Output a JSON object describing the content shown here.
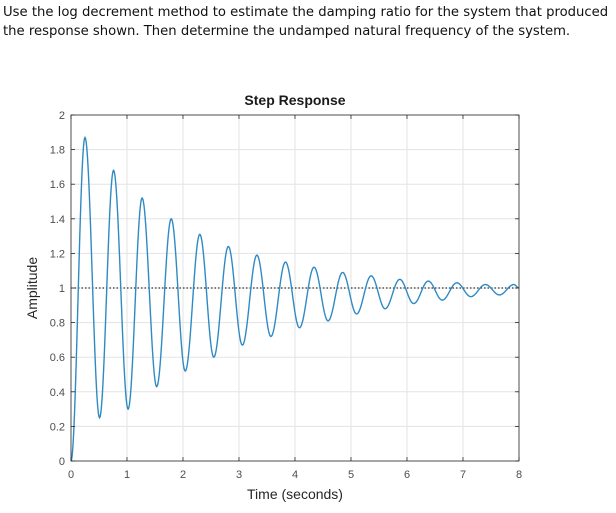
{
  "question": {
    "text": "Use the log decrement method to estimate the damping ratio for the system that produced the response shown.  Then determine the undamped natural frequency of the system."
  },
  "chart_data": {
    "type": "line",
    "title": "Step Response",
    "xlabel": "Time (seconds)",
    "ylabel": "Amplitude",
    "xlim": [
      0,
      8
    ],
    "ylim": [
      0,
      2
    ],
    "xticks": [
      0,
      1,
      2,
      3,
      4,
      5,
      6,
      7,
      8
    ],
    "yticks": [
      0,
      0.2,
      0.4,
      0.6,
      0.8,
      1,
      1.2,
      1.4,
      1.6,
      1.8,
      2
    ],
    "xtick_labels": [
      "0",
      "1",
      "2",
      "3",
      "4",
      "5",
      "6",
      "7",
      "8"
    ],
    "ytick_labels": [
      "0",
      "0.2",
      "0.4",
      "0.6",
      "0.8",
      "1",
      "1.2",
      "1.4",
      "1.6",
      "1.8",
      "2"
    ],
    "grid": true,
    "reference_line": {
      "y": 1,
      "style": "dotted",
      "color": "#000000"
    },
    "line_color": "#2f8ac4",
    "series": [
      {
        "x": [
          0,
          0.25,
          0.51,
          0.76,
          1.02,
          1.27,
          1.53,
          1.79,
          2.04,
          2.3,
          2.55,
          2.81,
          3.06,
          3.32,
          3.57,
          3.83,
          4.08,
          4.34,
          4.59,
          4.85,
          5.1,
          5.36,
          5.61,
          5.87,
          6.12,
          6.38,
          6.63,
          6.89,
          7.14,
          7.4,
          7.65,
          7.91,
          8.0
        ],
        "y": [
          0,
          1.87,
          0.25,
          1.68,
          0.3,
          1.52,
          0.43,
          1.4,
          0.52,
          1.31,
          0.6,
          1.24,
          0.67,
          1.19,
          0.72,
          1.15,
          0.77,
          1.12,
          0.81,
          1.09,
          0.85,
          1.07,
          0.88,
          1.05,
          0.91,
          1.04,
          0.93,
          1.03,
          0.95,
          1.02,
          0.96,
          1.02,
          1.0
        ]
      }
    ]
  }
}
